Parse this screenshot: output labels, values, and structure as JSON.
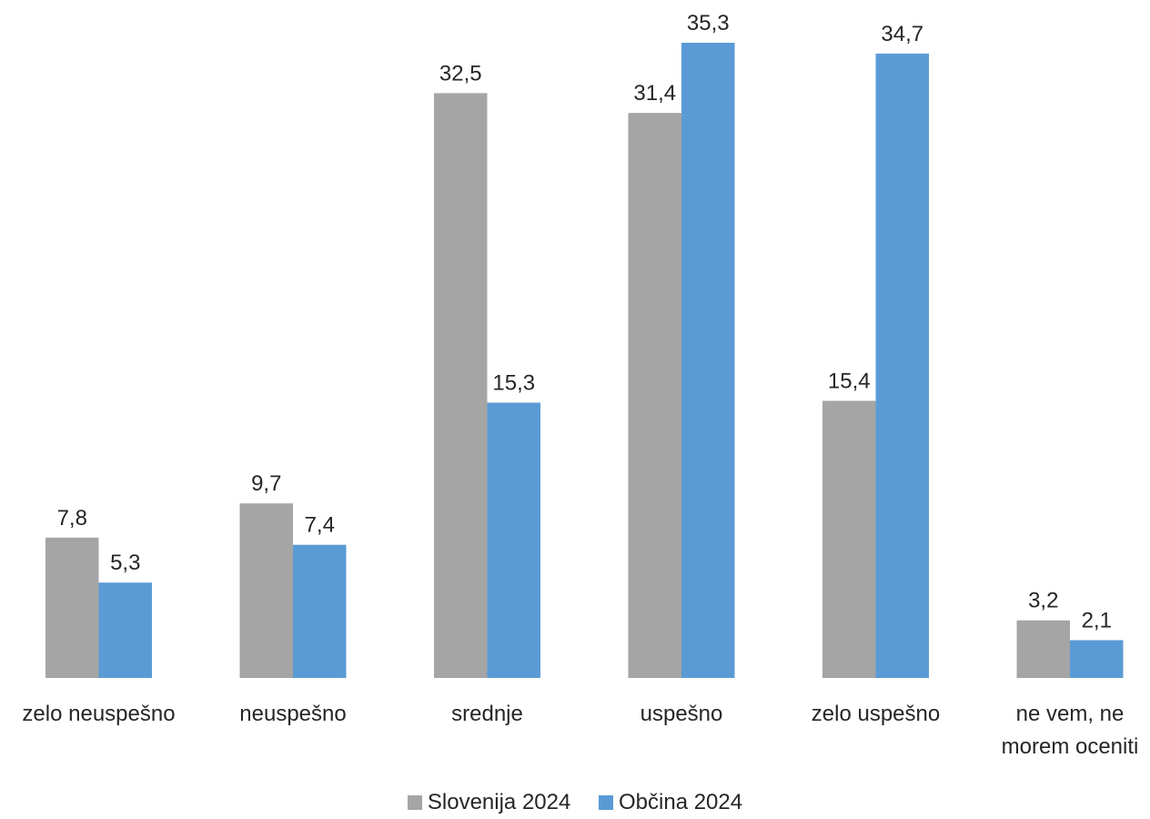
{
  "chart_data": {
    "type": "bar",
    "categories": [
      [
        "zelo neuspešno"
      ],
      [
        "neuspešno"
      ],
      [
        "srednje"
      ],
      [
        "uspešno"
      ],
      [
        "zelo uspešno"
      ],
      [
        "ne vem, ne",
        "morem oceniti"
      ]
    ],
    "series": [
      {
        "name": "Slovenija 2024",
        "color": "#A5A5A5",
        "values": [
          7.8,
          9.7,
          32.5,
          31.4,
          15.4,
          3.2
        ],
        "labels": [
          "7,8",
          "9,7",
          "32,5",
          "31,4",
          "15,4",
          "3,2"
        ]
      },
      {
        "name": "Občina 2024",
        "color": "#5B9BD5",
        "values": [
          5.3,
          7.4,
          15.3,
          35.3,
          34.7,
          2.1
        ],
        "labels": [
          "5,3",
          "7,4",
          "15,3",
          "35,3",
          "34,7",
          "2,1"
        ]
      }
    ],
    "ylim": [
      0,
      35.3
    ],
    "grid": false,
    "legend_position": "bottom"
  }
}
